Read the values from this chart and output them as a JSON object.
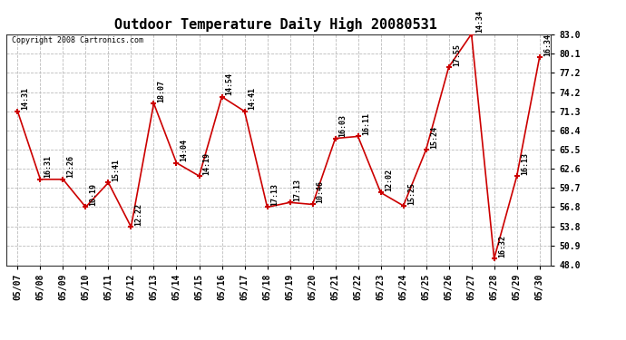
{
  "title": "Outdoor Temperature Daily High 20080531",
  "copyright": "Copyright 2008 Cartronics.com",
  "x_labels": [
    "05/07",
    "05/08",
    "05/09",
    "05/10",
    "05/11",
    "05/12",
    "05/13",
    "05/14",
    "05/15",
    "05/16",
    "05/17",
    "05/18",
    "05/19",
    "05/20",
    "05/21",
    "05/22",
    "05/23",
    "05/24",
    "05/25",
    "05/26",
    "05/27",
    "05/28",
    "05/29",
    "05/30"
  ],
  "y_values": [
    71.3,
    61.0,
    61.0,
    56.8,
    60.5,
    53.8,
    72.5,
    63.5,
    61.5,
    73.5,
    71.3,
    56.8,
    57.5,
    57.2,
    67.2,
    67.5,
    59.0,
    57.0,
    65.5,
    78.0,
    83.0,
    49.0,
    61.5,
    79.5
  ],
  "time_labels": [
    "14:31",
    "16:31",
    "12:26",
    "10:19",
    "15:41",
    "12:22",
    "18:07",
    "14:04",
    "14:19",
    "14:54",
    "14:41",
    "17:13",
    "17:13",
    "10:46",
    "16:03",
    "16:11",
    "12:02",
    "15:25",
    "15:24",
    "17:55",
    "14:34",
    "16:32",
    "16:13",
    "16:34"
  ],
  "y_ticks": [
    48.0,
    50.9,
    53.8,
    56.8,
    59.7,
    62.6,
    65.5,
    68.4,
    71.3,
    74.2,
    77.2,
    80.1,
    83.0
  ],
  "y_min": 48.0,
  "y_max": 83.0,
  "line_color": "#cc0000",
  "marker_color": "#cc0000",
  "bg_color": "#ffffff",
  "plot_bg_color": "#ffffff",
  "grid_color": "#bbbbbb",
  "title_fontsize": 11,
  "tick_fontsize": 7,
  "annot_fontsize": 6,
  "copyright_fontsize": 6
}
